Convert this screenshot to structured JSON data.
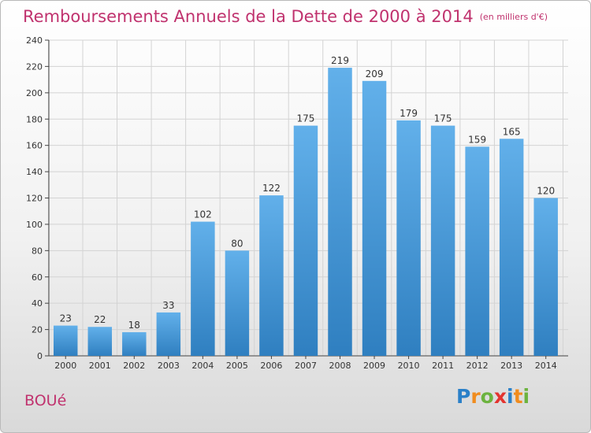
{
  "header": {
    "title": "Remboursements Annuels de la Dette de 2000 à 2014",
    "unit": "(en milliers d'€)"
  },
  "footer": {
    "town": "BOUé",
    "logo": {
      "letters": [
        "P",
        "r",
        "o",
        "x",
        "i",
        "t",
        "i"
      ],
      "colors": [
        "#2a80c8",
        "#f08c1e",
        "#6cb33f",
        "#e3342f",
        "#2a80c8",
        "#f08c1e",
        "#6cb33f"
      ]
    }
  },
  "colors": {
    "title": "#c0326e",
    "bar_top": "#62b0ea",
    "bar_bottom": "#2f7fc0",
    "grid": "#d3d3d3"
  },
  "chart_data": {
    "type": "bar",
    "categories": [
      "2000",
      "2001",
      "2002",
      "2003",
      "2004",
      "2005",
      "2006",
      "2007",
      "2008",
      "2009",
      "2010",
      "2011",
      "2012",
      "2013",
      "2014"
    ],
    "values": [
      23,
      22,
      18,
      33,
      102,
      80,
      122,
      175,
      219,
      209,
      179,
      175,
      159,
      165,
      120
    ],
    "title": "Remboursements Annuels de la Dette de 2000 à 2014",
    "xlabel": "",
    "ylabel": "",
    "ylim": [
      0,
      240
    ],
    "yticks": [
      0,
      20,
      40,
      60,
      80,
      100,
      120,
      140,
      160,
      180,
      200,
      220,
      240
    ],
    "grid": true,
    "data_labels": true
  }
}
